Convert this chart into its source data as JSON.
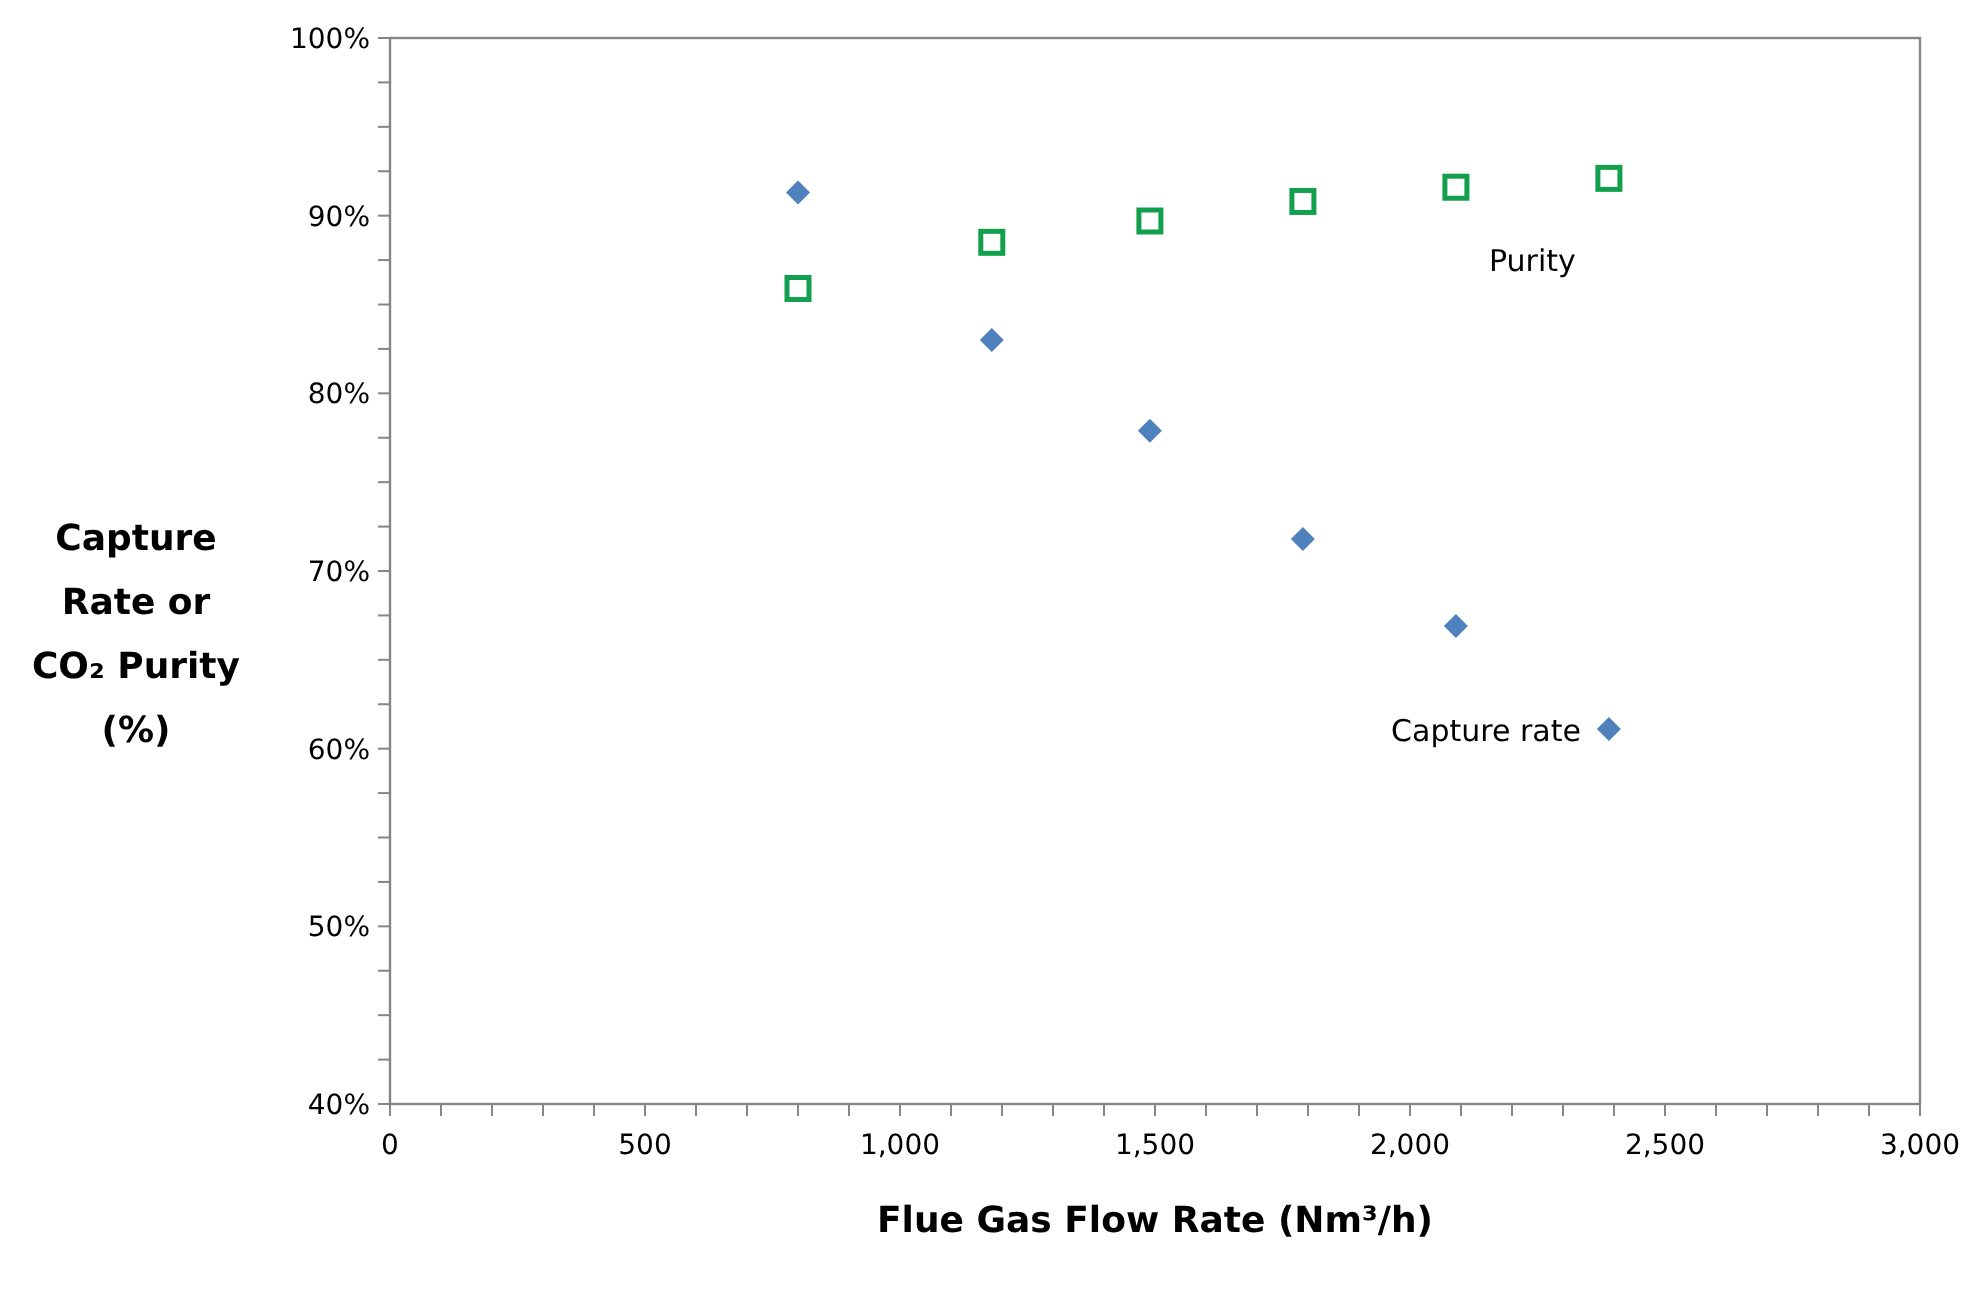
{
  "chart_data": {
    "type": "scatter",
    "xlabel": "Flue Gas Flow Rate (Nm³/h)",
    "ylabel": "Capture Rate or CO₂ Purity (%)",
    "xlim": [
      0,
      3000
    ],
    "ylim": [
      40,
      100
    ],
    "xticks": [
      0,
      {
        "value": 100,
        "label": null
      },
      {
        "value": 200,
        "label": null
      },
      {
        "value": 300,
        "label": null
      },
      {
        "value": 400,
        "label": null
      },
      500,
      {
        "value": 600,
        "label": null
      },
      {
        "value": 700,
        "label": null
      },
      {
        "value": 800,
        "label": null
      },
      {
        "value": 900,
        "label": null
      },
      {
        "value": 1000,
        "label": "1,000"
      },
      {
        "value": 1100,
        "label": null
      },
      {
        "value": 1200,
        "label": null
      },
      {
        "value": 1300,
        "label": null
      },
      {
        "value": 1400,
        "label": null
      },
      {
        "value": 1500,
        "label": "1,500"
      },
      {
        "value": 1600,
        "label": null
      },
      {
        "value": 1700,
        "label": null
      },
      {
        "value": 1800,
        "label": null
      },
      {
        "value": 1900,
        "label": null
      },
      {
        "value": 2000,
        "label": "2,000"
      },
      {
        "value": 2100,
        "label": null
      },
      {
        "value": 2200,
        "label": null
      },
      {
        "value": 2300,
        "label": null
      },
      {
        "value": 2400,
        "label": null
      },
      {
        "value": 2500,
        "label": "2,500"
      },
      {
        "value": 2600,
        "label": null
      },
      {
        "value": 2700,
        "label": null
      },
      {
        "value": 2800,
        "label": null
      },
      {
        "value": 2900,
        "label": null
      },
      {
        "value": 3000,
        "label": "3,000"
      }
    ],
    "yticks": [
      {
        "value": 40,
        "label": "40%"
      },
      {
        "value": 42.5,
        "label": null
      },
      {
        "value": 45,
        "label": null
      },
      {
        "value": 47.5,
        "label": null
      },
      {
        "value": 50,
        "label": "50%"
      },
      {
        "value": 52.5,
        "label": null
      },
      {
        "value": 55,
        "label": null
      },
      {
        "value": 57.5,
        "label": null
      },
      {
        "value": 60,
        "label": "60%"
      },
      {
        "value": 62.5,
        "label": null
      },
      {
        "value": 65,
        "label": null
      },
      {
        "value": 67.5,
        "label": null
      },
      {
        "value": 70,
        "label": "70%"
      },
      {
        "value": 72.5,
        "label": null
      },
      {
        "value": 75,
        "label": null
      },
      {
        "value": 77.5,
        "label": null
      },
      {
        "value": 80,
        "label": "80%"
      },
      {
        "value": 82.5,
        "label": null
      },
      {
        "value": 85,
        "label": null
      },
      {
        "value": 87.5,
        "label": null
      },
      {
        "value": 90,
        "label": "90%"
      },
      {
        "value": 92.5,
        "label": null
      },
      {
        "value": 95,
        "label": null
      },
      {
        "value": 97.5,
        "label": null
      },
      {
        "value": 100,
        "label": "100%"
      }
    ],
    "grid": false,
    "series": [
      {
        "name": "Capture rate",
        "color": "#4f81bd",
        "marker": "diamond",
        "x": [
          800,
          1180,
          1490,
          1790,
          2090,
          2390
        ],
        "values": [
          91.3,
          83.0,
          77.9,
          71.8,
          66.9,
          61.1
        ]
      },
      {
        "name": "Purity",
        "color": "#12a04f",
        "marker": "square",
        "x": [
          800,
          1180,
          1490,
          1790,
          2090,
          2390
        ],
        "values": [
          85.9,
          88.5,
          89.7,
          90.8,
          91.6,
          92.1
        ]
      }
    ]
  }
}
